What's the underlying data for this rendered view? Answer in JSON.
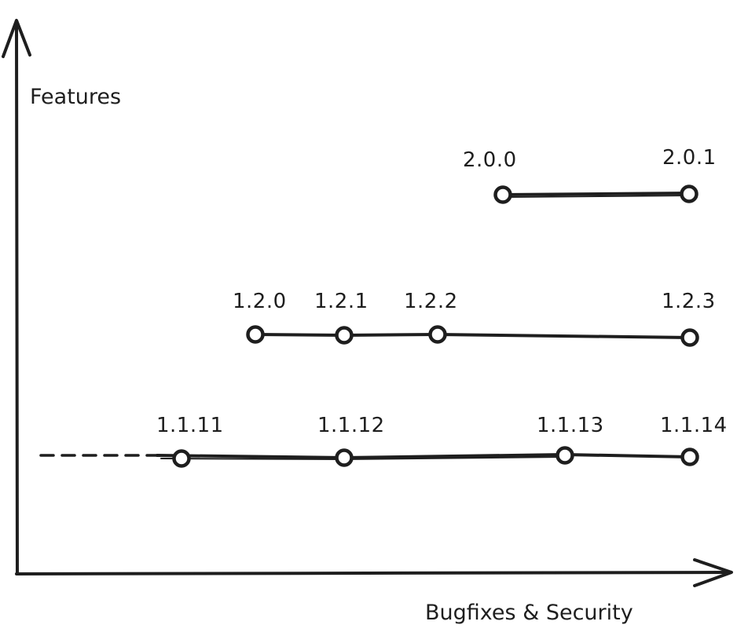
{
  "diagram": {
    "y_axis_label": "Features",
    "x_axis_label": "Bugfixes & Security",
    "ink_color": "#1e1e1e",
    "background": "#ffffff",
    "release_lines": [
      {
        "versions": [
          "2.0.0",
          "2.0.1"
        ]
      },
      {
        "versions": [
          "1.2.0",
          "1.2.1",
          "1.2.2",
          "1.2.3"
        ]
      },
      {
        "versions": [
          "1.1.11",
          "1.1.12",
          "1.1.13",
          "1.1.14"
        ],
        "continues_from_earlier": true
      }
    ]
  }
}
